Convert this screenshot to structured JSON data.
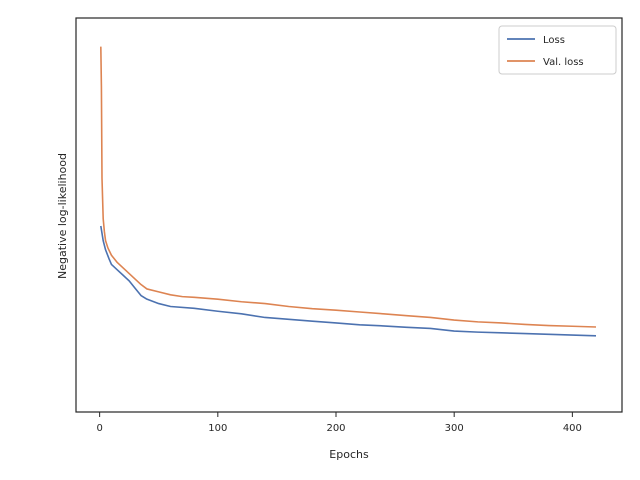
{
  "chart_data": {
    "type": "line",
    "title": "",
    "xlabel": "Epochs",
    "ylabel": "Negative log-likelihood",
    "xlim": [
      -20,
      442
    ],
    "xticks": [
      0,
      100,
      200,
      300,
      400
    ],
    "ylim": [
      0,
      1
    ],
    "yticks_visible": false,
    "grid": false,
    "legend": "upper right",
    "series": [
      {
        "name": "Loss",
        "color": "#4c72b0",
        "x": [
          1,
          3,
          5,
          8,
          10,
          15,
          20,
          25,
          30,
          35,
          40,
          50,
          60,
          80,
          100,
          120,
          140,
          160,
          180,
          200,
          220,
          240,
          260,
          280,
          300,
          320,
          340,
          360,
          380,
          400,
          420
        ],
        "y": [
          0.47,
          0.43,
          0.405,
          0.38,
          0.365,
          0.35,
          0.335,
          0.32,
          0.3,
          0.28,
          0.27,
          0.258,
          0.25,
          0.245,
          0.237,
          0.23,
          0.22,
          0.215,
          0.21,
          0.205,
          0.2,
          0.197,
          0.193,
          0.19,
          0.183,
          0.18,
          0.178,
          0.176,
          0.174,
          0.172,
          0.17
        ]
      },
      {
        "name": "Val. loss",
        "color": "#dd8452",
        "x": [
          1,
          1.5,
          2,
          3,
          4,
          5,
          7,
          10,
          15,
          20,
          25,
          30,
          35,
          40,
          50,
          60,
          70,
          80,
          100,
          120,
          140,
          160,
          180,
          200,
          220,
          240,
          260,
          280,
          300,
          320,
          340,
          360,
          380,
          400,
          420
        ],
        "y": [
          0.96,
          0.85,
          0.6,
          0.49,
          0.455,
          0.43,
          0.41,
          0.39,
          0.37,
          0.355,
          0.34,
          0.325,
          0.31,
          0.298,
          0.29,
          0.282,
          0.277,
          0.275,
          0.27,
          0.263,
          0.258,
          0.25,
          0.244,
          0.24,
          0.235,
          0.23,
          0.225,
          0.22,
          0.213,
          0.208,
          0.205,
          0.201,
          0.198,
          0.196,
          0.194
        ]
      }
    ]
  }
}
